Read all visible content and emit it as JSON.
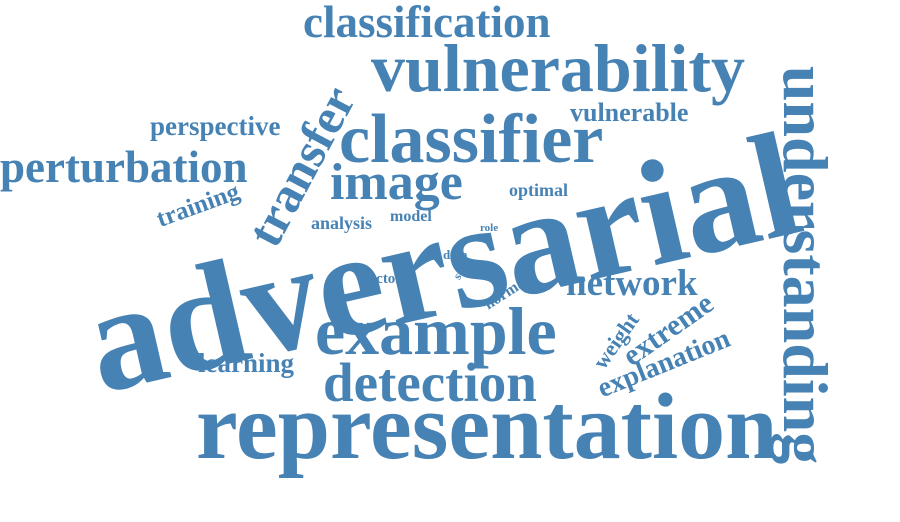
{
  "cloud": {
    "color": "#4682b4",
    "words": {
      "adversarial": "adversarial",
      "representation": "representation",
      "understanding": "understanding",
      "vulnerability": "vulnerability",
      "classifier": "classifier",
      "example": "example",
      "classification": "classification",
      "detection": "detection",
      "perturbation": "perturbation",
      "image": "image",
      "transfer": "transfer",
      "network": "network",
      "perspective": "perspective",
      "vulnerable": "vulnerable",
      "training": "training",
      "extreme": "extreme",
      "explanation": "explanation",
      "learning": "learning",
      "weight": "weight",
      "optimal": "optimal",
      "analysis": "analysis",
      "model": "model",
      "normal": "normal",
      "vector": "vector",
      "data": "data",
      "state": "state",
      "role": "role"
    }
  }
}
